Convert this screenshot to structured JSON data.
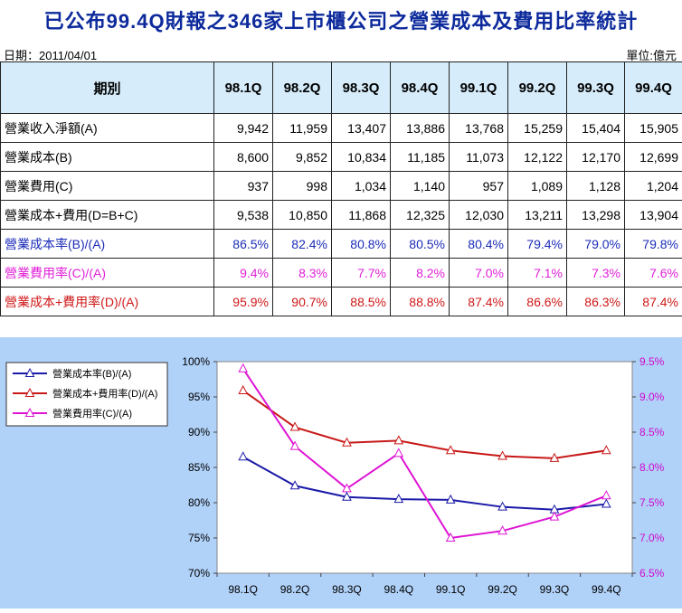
{
  "title": "已公布99.4Q財報之346家上市櫃公司之營業成本及費用比率統計",
  "date": "日期：2011/04/01",
  "unit": "單位:億元",
  "table": {
    "header": "期別",
    "periods": [
      "98.1Q",
      "98.2Q",
      "98.3Q",
      "98.4Q",
      "99.1Q",
      "99.2Q",
      "99.3Q",
      "99.4Q"
    ],
    "rows": [
      {
        "label": "營業收入淨額(A)",
        "values": [
          "9,942",
          "11,959",
          "13,407",
          "13,886",
          "13,768",
          "15,259",
          "15,404",
          "15,905"
        ]
      },
      {
        "label": "營業成本(B)",
        "values": [
          "8,600",
          "9,852",
          "10,834",
          "11,185",
          "11,073",
          "12,122",
          "12,170",
          "12,699"
        ]
      },
      {
        "label": "營業費用(C)",
        "values": [
          "937",
          "998",
          "1,034",
          "1,140",
          "957",
          "1,089",
          "1,128",
          "1,204"
        ]
      },
      {
        "label": "營業成本+費用(D=B+C)",
        "values": [
          "9,538",
          "10,850",
          "11,868",
          "12,325",
          "12,030",
          "13,211",
          "13,298",
          "13,904"
        ]
      },
      {
        "label": "營業成本率(B)/(A)",
        "values": [
          "86.5%",
          "82.4%",
          "80.8%",
          "80.5%",
          "80.4%",
          "79.4%",
          "79.0%",
          "79.8%"
        ],
        "style": "blue"
      },
      {
        "label": "營業費用率(C)/(A)",
        "values": [
          "9.4%",
          "8.3%",
          "7.7%",
          "8.2%",
          "7.0%",
          "7.1%",
          "7.3%",
          "7.6%"
        ],
        "style": "mag"
      },
      {
        "label": "營業成本+費用率(D)/(A)",
        "values": [
          "95.9%",
          "90.7%",
          "88.5%",
          "88.8%",
          "87.4%",
          "86.6%",
          "86.3%",
          "87.4%"
        ],
        "style": "red"
      }
    ]
  },
  "chart_data": {
    "type": "line",
    "categories": [
      "98.1Q",
      "98.2Q",
      "98.3Q",
      "98.4Q",
      "99.1Q",
      "99.2Q",
      "99.3Q",
      "99.4Q"
    ],
    "series": [
      {
        "name": "營業成本率(B)/(A)",
        "axis": "left",
        "color": "#1a1aa8",
        "values": [
          86.5,
          82.4,
          80.8,
          80.5,
          80.4,
          79.4,
          79.0,
          79.8
        ]
      },
      {
        "name": "營業成本+費用率(D)/(A)",
        "axis": "left",
        "color": "#c81818",
        "values": [
          95.9,
          90.7,
          88.5,
          88.8,
          87.4,
          86.6,
          86.3,
          87.4
        ]
      },
      {
        "name": "營業費用率(C)/(A)",
        "axis": "right",
        "color": "#dd14d4",
        "values": [
          9.4,
          8.3,
          7.7,
          8.2,
          7.0,
          7.1,
          7.3,
          7.6
        ]
      }
    ],
    "y_left": {
      "min": 70,
      "max": 100,
      "step": 5,
      "ticks": [
        "70%",
        "75%",
        "80%",
        "85%",
        "90%",
        "95%",
        "100%"
      ]
    },
    "y_right": {
      "min": 6.5,
      "max": 9.5,
      "step": 0.5,
      "ticks": [
        "6.5%",
        "7.0%",
        "7.5%",
        "8.0%",
        "8.5%",
        "9.0%",
        "9.5%"
      ]
    },
    "legend_position": "top-left",
    "grid": false
  }
}
